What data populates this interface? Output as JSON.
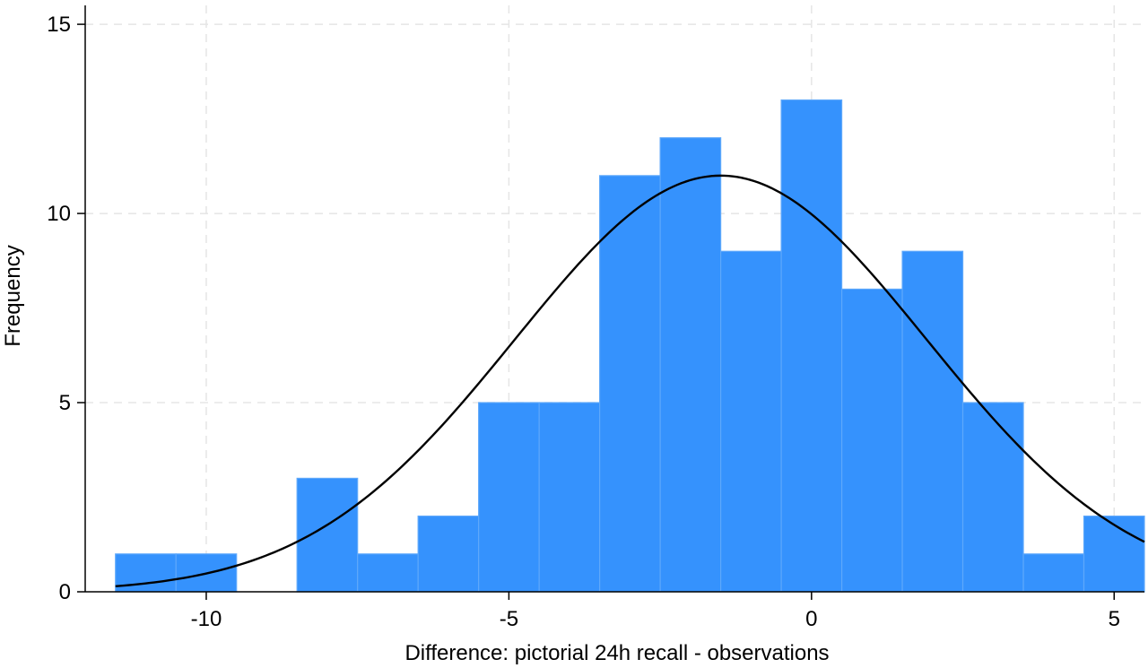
{
  "chart_data": {
    "type": "bar",
    "subtype": "histogram",
    "title": "",
    "xlabel": "Difference: pictorial 24h recall - observations",
    "ylabel": "Frequency",
    "xlim": [
      -12,
      5.5
    ],
    "ylim": [
      0,
      15.5
    ],
    "x_ticks": [
      -10,
      -5,
      0,
      5
    ],
    "x_tick_labels": [
      "-10",
      "-5",
      "0",
      "5"
    ],
    "y_ticks": [
      0,
      5,
      10,
      15
    ],
    "y_tick_labels": [
      "0",
      "5",
      "10",
      "15"
    ],
    "grid": true,
    "legend": "none",
    "bin_width": 1,
    "bins": [
      {
        "x0": -11.5,
        "x1": -10.5,
        "count": 1
      },
      {
        "x0": -10.5,
        "x1": -9.5,
        "count": 1
      },
      {
        "x0": -9.5,
        "x1": -8.5,
        "count": 0
      },
      {
        "x0": -8.5,
        "x1": -7.5,
        "count": 3
      },
      {
        "x0": -7.5,
        "x1": -6.5,
        "count": 1
      },
      {
        "x0": -6.5,
        "x1": -5.5,
        "count": 2
      },
      {
        "x0": -5.5,
        "x1": -4.5,
        "count": 5
      },
      {
        "x0": -4.5,
        "x1": -3.5,
        "count": 5
      },
      {
        "x0": -3.5,
        "x1": -2.5,
        "count": 11
      },
      {
        "x0": -2.5,
        "x1": -1.5,
        "count": 12
      },
      {
        "x0": -1.5,
        "x1": -0.5,
        "count": 9
      },
      {
        "x0": -0.5,
        "x1": 0.5,
        "count": 13
      },
      {
        "x0": 0.5,
        "x1": 1.5,
        "count": 8
      },
      {
        "x0": 1.5,
        "x1": 2.5,
        "count": 9
      },
      {
        "x0": 2.5,
        "x1": 3.5,
        "count": 5
      },
      {
        "x0": 3.5,
        "x1": 4.5,
        "count": 1
      },
      {
        "x0": 4.5,
        "x1": 5.5,
        "count": 2
      }
    ],
    "normal_curve": {
      "mean": -1.5,
      "sd": 3.4,
      "peak": 11,
      "x_range": [
        -11.5,
        5.5
      ]
    },
    "colors": {
      "bar_fill": "#3592fd",
      "bar_edge": "#5ea8fb",
      "curve": "#000000",
      "grid": "#e5e5e5",
      "axis": "#000000"
    }
  }
}
